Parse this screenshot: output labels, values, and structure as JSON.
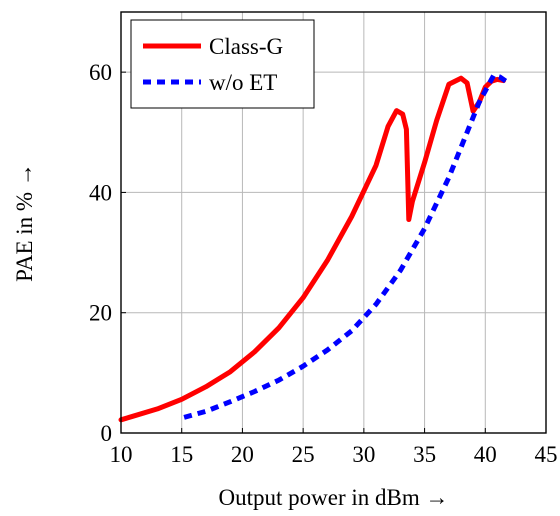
{
  "chart_data": {
    "type": "line",
    "title": "",
    "xlabel": "Output power in dBm →",
    "ylabel": "PAE in % →",
    "xlim": [
      10,
      45
    ],
    "ylim": [
      0,
      70
    ],
    "xticks": [
      10,
      15,
      20,
      25,
      30,
      35,
      40,
      45
    ],
    "yticks": [
      0,
      20,
      40,
      60
    ],
    "grid": true,
    "legend_position": "top-left",
    "series": [
      {
        "name": "Class-G",
        "color": "#ff0000",
        "style": "solid",
        "x": [
          10,
          11,
          13,
          15,
          17,
          19,
          21,
          23,
          25,
          27,
          29,
          31,
          32,
          32.7,
          33.2,
          33.5,
          33.7,
          34,
          35,
          36,
          37,
          38,
          38.5,
          39,
          39.5,
          40,
          40.5,
          41,
          41.5
        ],
        "y": [
          2.2,
          2.8,
          4,
          5.6,
          7.7,
          10.2,
          13.5,
          17.5,
          22.5,
          28.7,
          36,
          44.5,
          51,
          53.6,
          53,
          50.5,
          35.5,
          38.5,
          45,
          52,
          58,
          59,
          58.2,
          53.5,
          55,
          57.5,
          58.5,
          58.8,
          58.6
        ]
      },
      {
        "name": "w/o ET",
        "color": "#0000ff",
        "style": "dashed",
        "x": [
          15.2,
          17,
          19,
          21,
          23,
          25,
          27,
          29,
          31,
          33,
          35,
          37,
          38.5,
          39.5,
          40.3,
          40.7,
          41.2,
          41.7
        ],
        "y": [
          2.6,
          3.6,
          5.2,
          6.9,
          8.8,
          11.1,
          13.8,
          17,
          21.4,
          27,
          34,
          42.5,
          50,
          55,
          58,
          59.5,
          59.2,
          58.5
        ]
      }
    ]
  }
}
